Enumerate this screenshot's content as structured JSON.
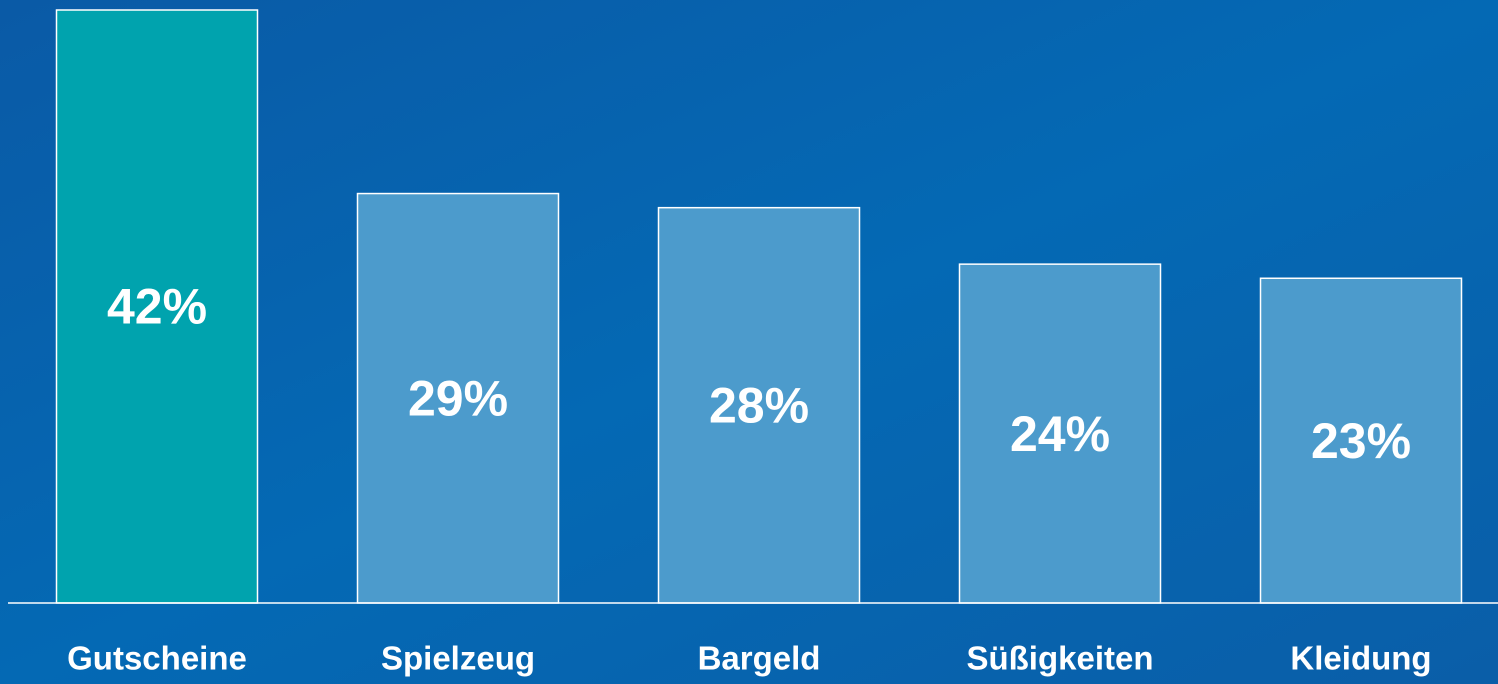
{
  "chart_data": {
    "type": "bar",
    "categories": [
      "Gutscheine",
      "Spielzeug",
      "Bargeld",
      "Süßigkeiten",
      "Kleidung"
    ],
    "values": [
      42,
      29,
      28,
      24,
      23
    ],
    "value_labels": [
      "42%",
      "29%",
      "28%",
      "24%",
      "23%"
    ],
    "colors": [
      "#00a3ae",
      "#4c9bcc",
      "#4c9bcc",
      "#4c9bcc",
      "#4c9bcc"
    ],
    "ylim": [
      0,
      42
    ]
  }
}
